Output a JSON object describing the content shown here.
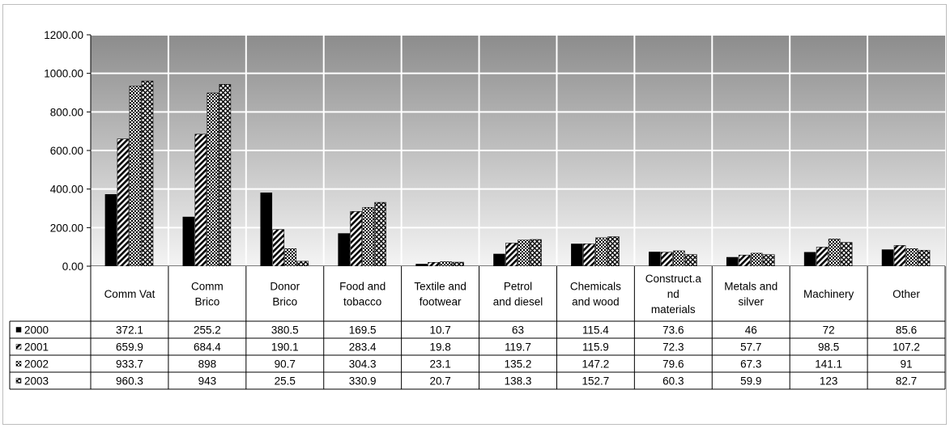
{
  "chart_data": {
    "type": "bar",
    "categories": [
      [
        "Comm Vat"
      ],
      [
        "Comm",
        "Brico"
      ],
      [
        "Donor",
        "Brico"
      ],
      [
        "Food and",
        "tobacco"
      ],
      [
        "Textile and",
        "footwear"
      ],
      [
        "Petrol",
        "and diesel"
      ],
      [
        "Chemicals",
        "and wood"
      ],
      [
        "Construct.a",
        "nd",
        "materials"
      ],
      [
        "Metals and",
        "silver"
      ],
      [
        "Machinery"
      ],
      [
        "Other"
      ]
    ],
    "series": [
      {
        "name": "2000",
        "pattern": "solid",
        "values": [
          372.1,
          255.2,
          380.5,
          169.5,
          10.7,
          63,
          115.4,
          73.6,
          46,
          72,
          85.6
        ]
      },
      {
        "name": "2001",
        "pattern": "diagonal",
        "values": [
          659.9,
          684.4,
          190.1,
          283.4,
          19.8,
          119.7,
          115.9,
          72.3,
          57.7,
          98.5,
          107.2
        ]
      },
      {
        "name": "2002",
        "pattern": "checker",
        "values": [
          933.7,
          898,
          90.7,
          304.3,
          23.1,
          135.2,
          147.2,
          79.6,
          67.3,
          141.1,
          91
        ]
      },
      {
        "name": "2003",
        "pattern": "crosshatch",
        "values": [
          960.3,
          943,
          25.5,
          330.9,
          20.7,
          138.3,
          152.7,
          60.3,
          59.9,
          123,
          82.7
        ]
      }
    ],
    "ylim": [
      0,
      1200
    ],
    "yticks": [
      "0.00",
      "200.00",
      "400.00",
      "600.00",
      "800.00",
      "1000.00",
      "1200.00"
    ],
    "grid": true,
    "legend": "data-table-left",
    "colors": {
      "plot_top": "#8c8c8c",
      "plot_bottom": "#f4f4f4",
      "grid": "#ffffff",
      "bar_fill": "#000000"
    }
  }
}
